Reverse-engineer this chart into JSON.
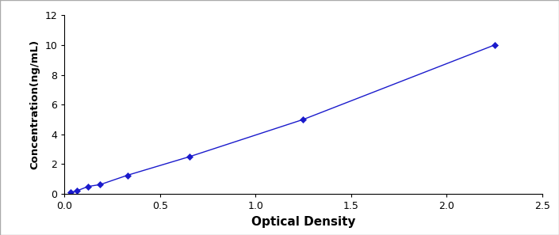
{
  "x_data": [
    0.031,
    0.065,
    0.125,
    0.188,
    0.33,
    0.655,
    1.25,
    2.25
  ],
  "y_data": [
    0.1,
    0.2,
    0.5,
    0.625,
    1.25,
    2.5,
    5.0,
    10.0
  ],
  "line_color": "#1a1acc",
  "marker_color": "#1a1acc",
  "marker_style": "D",
  "marker_size": 4,
  "line_width": 1.0,
  "xlabel": "Optical Density",
  "ylabel": "Concentration(ng/mL)",
  "xlim": [
    0,
    2.5
  ],
  "ylim": [
    0,
    12
  ],
  "xticks": [
    0,
    0.5,
    1,
    1.5,
    2,
    2.5
  ],
  "yticks": [
    0,
    2,
    4,
    6,
    8,
    10,
    12
  ],
  "xlabel_fontsize": 11,
  "ylabel_fontsize": 9.5,
  "tick_fontsize": 9,
  "background_color": "#ffffff",
  "outer_bg": "#e8e8e8",
  "border_color": "#aaaaaa",
  "border_linewidth": 1.0
}
